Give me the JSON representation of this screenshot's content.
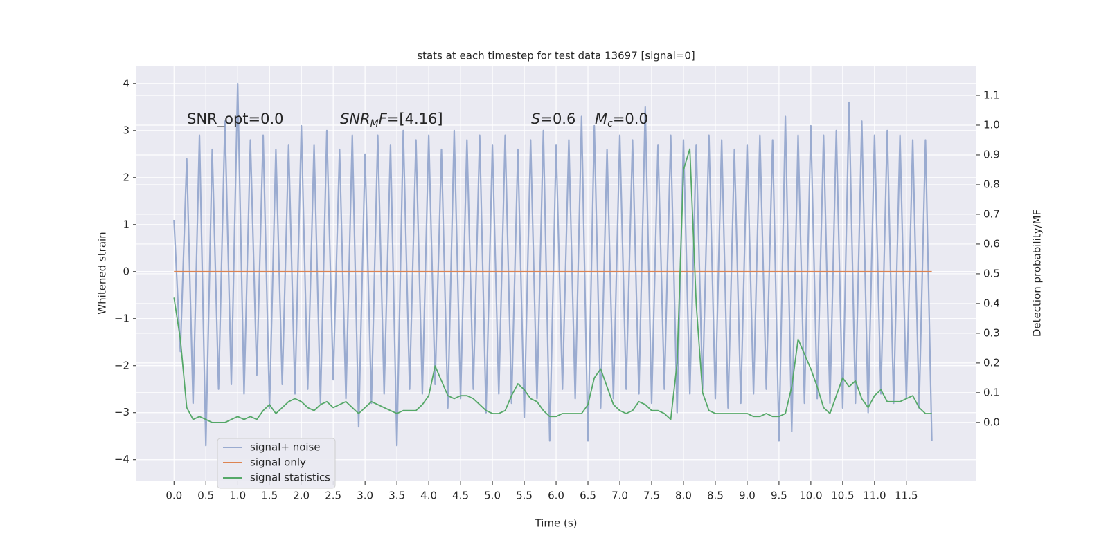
{
  "chart_data": {
    "type": "line",
    "title": "stats at each timestep for test data 13697 [signal=0]",
    "xlabel": "Time (s)",
    "ylabel": "Whitened strain",
    "y2label": "Detection probability/MF",
    "x": [
      0.0,
      0.1,
      0.2,
      0.3,
      0.4,
      0.5,
      0.6,
      0.7,
      0.8,
      0.9,
      1.0,
      1.1,
      1.2,
      1.3,
      1.4,
      1.5,
      1.6,
      1.7,
      1.8,
      1.9,
      2.0,
      2.1,
      2.2,
      2.3,
      2.4,
      2.5,
      2.6,
      2.7,
      2.8,
      2.9,
      3.0,
      3.1,
      3.2,
      3.3,
      3.4,
      3.5,
      3.6,
      3.7,
      3.8,
      3.9,
      4.0,
      4.1,
      4.2,
      4.3,
      4.4,
      4.5,
      4.6,
      4.7,
      4.8,
      4.9,
      5.0,
      5.1,
      5.2,
      5.3,
      5.4,
      5.5,
      5.6,
      5.7,
      5.8,
      5.9,
      6.0,
      6.1,
      6.2,
      6.3,
      6.4,
      6.5,
      6.6,
      6.7,
      6.8,
      6.9,
      7.0,
      7.1,
      7.2,
      7.3,
      7.4,
      7.5,
      7.6,
      7.7,
      7.8,
      7.9,
      8.0,
      8.1,
      8.2,
      8.3,
      8.4,
      8.5,
      8.6,
      8.7,
      8.8,
      8.9,
      9.0,
      9.1,
      9.2,
      9.3,
      9.4,
      9.5,
      9.6,
      9.7,
      9.8,
      9.9,
      10.0,
      10.1,
      10.2,
      10.3,
      10.4,
      10.5,
      10.6,
      10.7,
      10.8,
      10.9,
      11.0,
      11.1,
      11.2,
      11.3,
      11.4,
      11.5,
      11.6,
      11.7,
      11.8,
      11.9
    ],
    "series": [
      {
        "name": "signal+ noise",
        "color": "#9aabd0",
        "axis": "y",
        "values": [
          1.1,
          -1.7,
          2.4,
          -2.8,
          2.9,
          -3.7,
          2.6,
          -2.5,
          3.2,
          -2.4,
          4.0,
          -2.6,
          2.8,
          -2.2,
          2.9,
          -2.9,
          2.6,
          -2.4,
          2.7,
          -2.6,
          3.1,
          -2.5,
          2.7,
          -2.8,
          3.0,
          -2.3,
          2.6,
          -2.7,
          2.9,
          -3.3,
          2.5,
          -2.8,
          2.9,
          -2.6,
          2.7,
          -3.7,
          3.0,
          -2.5,
          2.8,
          -2.6,
          2.9,
          -2.4,
          2.6,
          -2.9,
          3.0,
          -2.7,
          2.8,
          -2.5,
          2.9,
          -3.0,
          2.7,
          -2.6,
          2.9,
          -2.8,
          2.6,
          -3.1,
          2.8,
          -2.7,
          3.0,
          -3.6,
          2.7,
          -2.5,
          2.8,
          -2.7,
          3.3,
          -3.6,
          3.1,
          -2.9,
          2.6,
          -2.7,
          2.9,
          -2.5,
          2.8,
          -2.6,
          3.5,
          -2.8,
          2.7,
          -2.5,
          2.9,
          -3.0,
          2.8,
          -2.6,
          2.7,
          -2.5,
          2.9,
          -2.7,
          2.8,
          -2.9,
          2.6,
          -2.8,
          2.7,
          -2.6,
          2.9,
          -2.5,
          2.8,
          -3.6,
          3.3,
          -3.4,
          2.9,
          -2.8,
          3.1,
          -2.7,
          2.9,
          -2.8,
          3.0,
          -2.9,
          3.6,
          -2.8,
          3.2,
          -3.0,
          2.9,
          -2.6,
          3.0,
          -2.8,
          2.9,
          -2.7,
          2.8,
          -2.9,
          2.8,
          -3.6
        ]
      },
      {
        "name": "signal only",
        "color": "#dd8452",
        "axis": "y",
        "values": [
          0,
          0,
          0,
          0,
          0,
          0,
          0,
          0,
          0,
          0,
          0,
          0,
          0,
          0,
          0,
          0,
          0,
          0,
          0,
          0,
          0,
          0,
          0,
          0,
          0,
          0,
          0,
          0,
          0,
          0,
          0,
          0,
          0,
          0,
          0,
          0,
          0,
          0,
          0,
          0,
          0,
          0,
          0,
          0,
          0,
          0,
          0,
          0,
          0,
          0,
          0,
          0,
          0,
          0,
          0,
          0,
          0,
          0,
          0,
          0,
          0,
          0,
          0,
          0,
          0,
          0,
          0,
          0,
          0,
          0,
          0,
          0,
          0,
          0,
          0,
          0,
          0,
          0,
          0,
          0,
          0,
          0,
          0,
          0,
          0,
          0,
          0,
          0,
          0,
          0,
          0,
          0,
          0,
          0,
          0,
          0,
          0,
          0,
          0,
          0,
          0,
          0,
          0,
          0,
          0,
          0,
          0,
          0,
          0,
          0,
          0,
          0,
          0,
          0,
          0,
          0,
          0,
          0,
          0,
          0
        ]
      },
      {
        "name": "signal statistics",
        "color": "#55a868",
        "axis": "y2",
        "values": [
          0.42,
          0.28,
          0.05,
          0.01,
          0.02,
          0.01,
          0.0,
          0.0,
          0.0,
          0.01,
          0.02,
          0.01,
          0.02,
          0.01,
          0.04,
          0.06,
          0.03,
          0.05,
          0.07,
          0.08,
          0.07,
          0.05,
          0.04,
          0.06,
          0.07,
          0.05,
          0.06,
          0.07,
          0.05,
          0.03,
          0.05,
          0.07,
          0.06,
          0.05,
          0.04,
          0.03,
          0.04,
          0.04,
          0.04,
          0.06,
          0.09,
          0.19,
          0.14,
          0.09,
          0.08,
          0.09,
          0.09,
          0.08,
          0.06,
          0.04,
          0.03,
          0.03,
          0.04,
          0.09,
          0.13,
          0.11,
          0.08,
          0.07,
          0.04,
          0.02,
          0.02,
          0.03,
          0.03,
          0.03,
          0.03,
          0.06,
          0.15,
          0.18,
          0.12,
          0.06,
          0.04,
          0.03,
          0.04,
          0.07,
          0.06,
          0.04,
          0.04,
          0.03,
          0.01,
          0.2,
          0.85,
          0.92,
          0.4,
          0.1,
          0.04,
          0.03,
          0.03,
          0.03,
          0.03,
          0.03,
          0.03,
          0.02,
          0.02,
          0.03,
          0.02,
          0.02,
          0.03,
          0.12,
          0.28,
          0.23,
          0.18,
          0.12,
          0.05,
          0.03,
          0.09,
          0.15,
          0.12,
          0.14,
          0.08,
          0.05,
          0.09,
          0.11,
          0.07,
          0.07,
          0.07,
          0.08,
          0.09,
          0.05,
          0.03,
          0.03
        ]
      }
    ],
    "xlim": [
      -0.59,
      12.6
    ],
    "xticks": [
      {
        "value": 0,
        "label": "0.0"
      },
      0.5,
      {
        "value": 1,
        "label": "1.0"
      },
      1.5,
      {
        "value": 2,
        "label": "2.0"
      },
      2.5,
      {
        "value": 3,
        "label": "3.0"
      },
      3.5,
      {
        "value": 4,
        "label": "4.0"
      },
      4.5,
      {
        "value": 5,
        "label": "5.0"
      },
      5.5,
      {
        "value": 6,
        "label": "6.0"
      },
      6.5,
      {
        "value": 7,
        "label": "7.0"
      },
      7.5,
      {
        "value": 8,
        "label": "8.0"
      },
      8.5,
      {
        "value": 9,
        "label": "9.0"
      },
      9.5,
      {
        "value": 10,
        "label": "10.0"
      },
      10.5,
      {
        "value": 11,
        "label": "11.0"
      },
      11.5
    ],
    "ylim": [
      -4.46,
      4.38
    ],
    "yticks": [
      {
        "value": -4,
        "label": "−4"
      },
      {
        "value": -3,
        "label": "−3"
      },
      {
        "value": -2,
        "label": "−2"
      },
      {
        "value": -1,
        "label": "−1"
      },
      0,
      1,
      2,
      3,
      4
    ],
    "y2lim": [
      -0.198,
      1.2
    ],
    "y2ticks": [
      {
        "value": 0,
        "label": "0.0"
      },
      0.1,
      0.2,
      0.3,
      0.4,
      0.5,
      0.6,
      0.7,
      0.8,
      0.9,
      {
        "value": 1,
        "label": "1.0"
      },
      1.1
    ],
    "grid": true,
    "legend_loc": "lower left",
    "annotations": [
      {
        "text": "SNR_opt=0.0"
      },
      {
        "italic": "SNR",
        "sub": "M",
        "italic2": "F",
        "text": "=[4.16]"
      },
      {
        "italic": "S",
        "text": "=0.6"
      },
      {
        "italic": "M",
        "sub": "c",
        "text": "=0.0"
      }
    ]
  }
}
